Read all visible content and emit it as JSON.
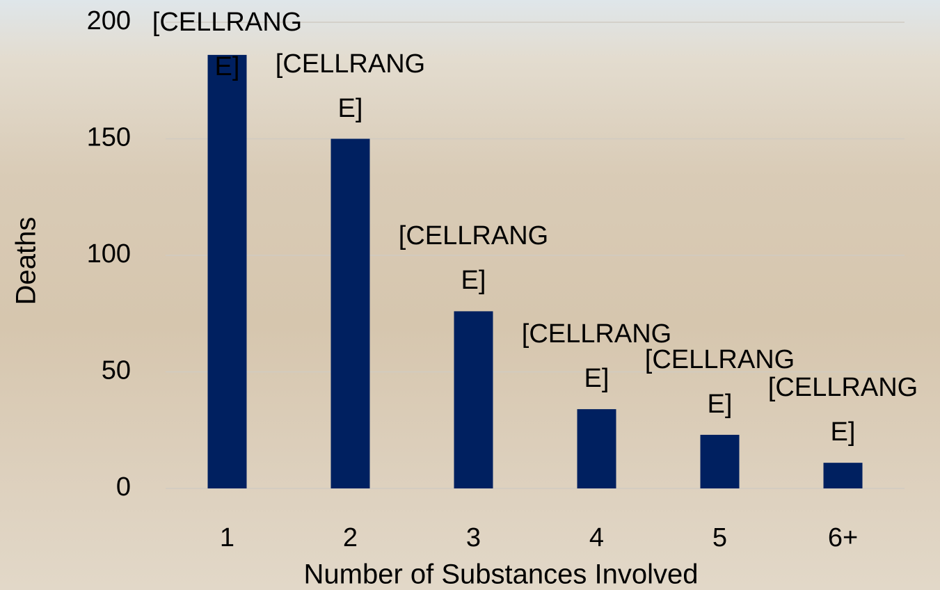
{
  "chart_data": {
    "type": "bar",
    "x_label": "Number of Substances Involved",
    "y_label": "Deaths",
    "categories": [
      "1",
      "2",
      "3",
      "4",
      "5",
      "6+"
    ],
    "values": [
      186,
      150,
      76,
      34,
      23,
      11
    ],
    "value_labels": [
      "[CELLRANGE]",
      "[CELLRANGE]",
      "[CELLRANGE]",
      "[CELLRANGE]",
      "[CELLRANGE]",
      "[CELLRANGE]"
    ],
    "color": "#002060",
    "ylim": [
      0,
      200
    ],
    "yticks": [
      0,
      50,
      100,
      150,
      200
    ],
    "grid": true
  }
}
